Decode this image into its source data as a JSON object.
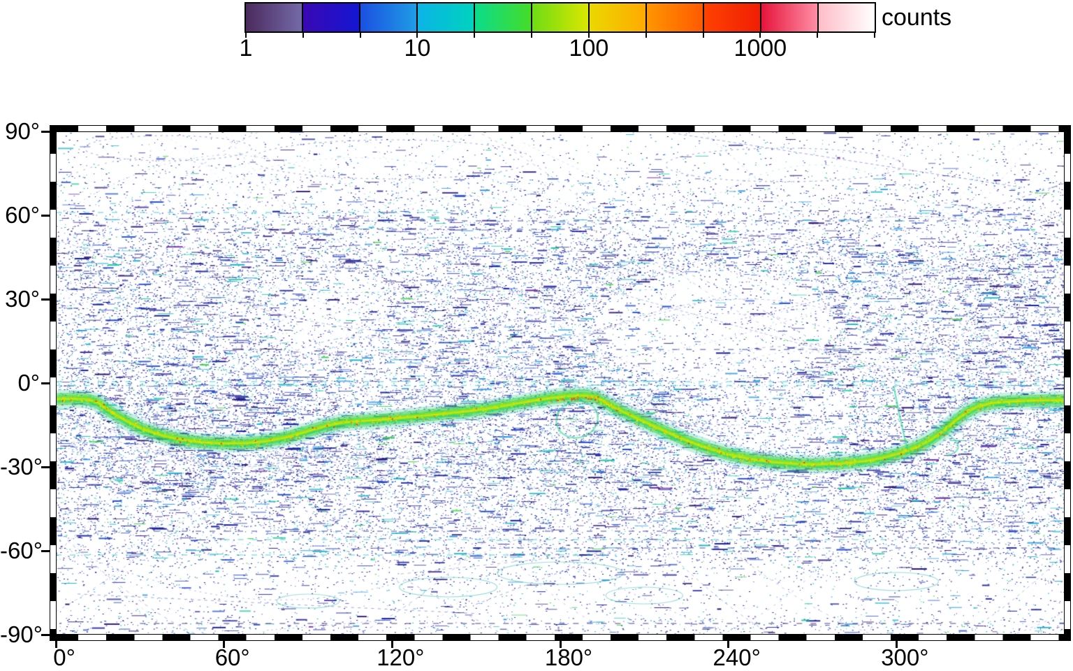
{
  "colorbar": {
    "label": "counts",
    "scale": "log",
    "tick_labels": [
      "1",
      "10",
      "100",
      "1000"
    ],
    "segments": [
      {
        "from": "#4b2a5e",
        "to": "#746aa8"
      },
      {
        "from": "#3a08b4",
        "to": "#1416d2"
      },
      {
        "from": "#1b50e1",
        "to": "#1f9ce6"
      },
      {
        "from": "#0ab4e6",
        "to": "#00d2be"
      },
      {
        "from": "#0adc8c",
        "to": "#46dc28"
      },
      {
        "from": "#6edc14",
        "to": "#dce600"
      },
      {
        "from": "#ebd800",
        "to": "#ffaa00"
      },
      {
        "from": "#ff9600",
        "to": "#ff5a00"
      },
      {
        "from": "#ff4100",
        "to": "#f01e05"
      },
      {
        "from": "#e6143c",
        "to": "#ff8fa5"
      },
      {
        "from": "#ffbdc8",
        "to": "#ffffff"
      }
    ]
  },
  "x_axis": {
    "tick_labels": [
      "0°",
      "60°",
      "120°",
      "180°",
      "240°",
      "300°"
    ],
    "tick_values_deg": [
      0,
      60,
      120,
      180,
      240,
      300
    ]
  },
  "y_axis": {
    "tick_labels": [
      "90°",
      "60°",
      "30°",
      "0°",
      "-30°",
      "-60°",
      "-90°"
    ],
    "tick_values_deg": [
      90,
      60,
      30,
      0,
      -30,
      -60,
      -90
    ]
  },
  "chart_data": {
    "type": "heatmap",
    "title": "",
    "xlabel": "",
    "ylabel": "",
    "x_range_deg": [
      0,
      360
    ],
    "y_range_deg": [
      -90,
      90
    ],
    "grid": false,
    "colorbar": {
      "label": "counts",
      "scale": "log",
      "ticks": [
        1,
        10,
        100,
        1000
      ],
      "range": [
        1,
        5000
      ],
      "segments_per_decade": 3
    },
    "speckle_palette": [
      [
        "#181c96",
        0.38
      ],
      [
        "#2a1470",
        0.17
      ],
      [
        "#3c2896",
        0.06
      ],
      [
        "#1e46c8",
        0.13
      ],
      [
        "#2596dc",
        0.11
      ],
      [
        "#18b4c8",
        0.08
      ],
      [
        "#14c896",
        0.04
      ],
      [
        "#32d23c",
        0.02
      ],
      [
        "#6a28a0",
        0.01
      ]
    ],
    "band_fleck_palette": [
      [
        "#e6e600",
        0.38
      ],
      [
        "#ffc800",
        0.18
      ],
      [
        "#96e61e",
        0.25
      ],
      [
        "#64dc28",
        0.08
      ],
      [
        "#ff6414",
        0.06
      ],
      [
        "#e62814",
        0.05
      ]
    ],
    "density_by_latitude_band": [
      {
        "lat_from": 75,
        "lat_to": 90,
        "relative_density": 0.1
      },
      {
        "lat_from": 62,
        "lat_to": 75,
        "relative_density": 0.22
      },
      {
        "lat_from": 50,
        "lat_to": 62,
        "relative_density": 0.42
      },
      {
        "lat_from": 25,
        "lat_to": 50,
        "relative_density": 0.6
      },
      {
        "lat_from": 8,
        "lat_to": 25,
        "relative_density": 0.55
      },
      {
        "lat_from": -3,
        "lat_to": 8,
        "relative_density": 0.58
      },
      {
        "lat_from": -38,
        "lat_to": -3,
        "relative_density": 0.7
      },
      {
        "lat_from": -52,
        "lat_to": -38,
        "relative_density": 0.52
      },
      {
        "lat_from": -64,
        "lat_to": -52,
        "relative_density": 0.4
      },
      {
        "lat_from": -72,
        "lat_to": -64,
        "relative_density": 0.22
      },
      {
        "lat_from": -84,
        "lat_to": -72,
        "relative_density": 0.13
      },
      {
        "lat_from": -90,
        "lat_to": -84,
        "relative_density": 0.26
      }
    ],
    "features": {
      "main_band": {
        "description": "high-count (100-1000) sinusoidal ground-track band",
        "peak_counts": 1000,
        "points_lon_lat": [
          [
            0,
            -5.8
          ],
          [
            6,
            -5.6
          ],
          [
            11,
            -5.8
          ],
          [
            15,
            -7
          ],
          [
            19,
            -10
          ],
          [
            25,
            -13.5
          ],
          [
            31,
            -16.5
          ],
          [
            38,
            -18.8
          ],
          [
            45,
            -20.3
          ],
          [
            52,
            -21.2
          ],
          [
            60,
            -21.6
          ],
          [
            68,
            -21.5
          ],
          [
            75,
            -20.8
          ],
          [
            82,
            -19.5
          ],
          [
            89,
            -17.5
          ],
          [
            96,
            -15.5
          ],
          [
            102,
            -14.2
          ],
          [
            108,
            -13.6
          ],
          [
            115,
            -13.2
          ],
          [
            122,
            -12.6
          ],
          [
            130,
            -11.8
          ],
          [
            138,
            -11
          ],
          [
            146,
            -10.2
          ],
          [
            154,
            -9.2
          ],
          [
            162,
            -7.8
          ],
          [
            170,
            -6.4
          ],
          [
            177,
            -5.3
          ],
          [
            183,
            -4.7
          ],
          [
            189,
            -4.5
          ],
          [
            193,
            -5.2
          ],
          [
            196,
            -7
          ],
          [
            200,
            -9.2
          ],
          [
            206,
            -12
          ],
          [
            212,
            -14.8
          ],
          [
            219,
            -18
          ],
          [
            226,
            -21
          ],
          [
            233,
            -23.5
          ],
          [
            240,
            -25.5
          ],
          [
            248,
            -27.2
          ],
          [
            256,
            -28.3
          ],
          [
            264,
            -28.9
          ],
          [
            272,
            -29.1
          ],
          [
            280,
            -28.8
          ],
          [
            288,
            -28
          ],
          [
            295,
            -26.8
          ],
          [
            301,
            -25.2
          ],
          [
            307,
            -23
          ],
          [
            312,
            -20.5
          ],
          [
            317,
            -17
          ],
          [
            321,
            -13.5
          ],
          [
            325,
            -10.5
          ],
          [
            329,
            -8.4
          ],
          [
            334,
            -7.2
          ],
          [
            340,
            -6.6
          ],
          [
            348,
            -6.3
          ],
          [
            354,
            -6.2
          ],
          [
            360,
            -6.2
          ]
        ]
      },
      "kink_loop": {
        "center_lon_lat": [
          186,
          -13
        ],
        "rx_deg": 7.5,
        "ry_deg": 6.5
      },
      "right_sub_strand_lon_lat": [
        [
          313,
          -15
        ],
        [
          328,
          -23
        ],
        [
          318,
          -26
        ]
      ],
      "vertical_streak_lon_lat": [
        [
          299,
          -1
        ],
        [
          304,
          -24
        ]
      ]
    }
  }
}
